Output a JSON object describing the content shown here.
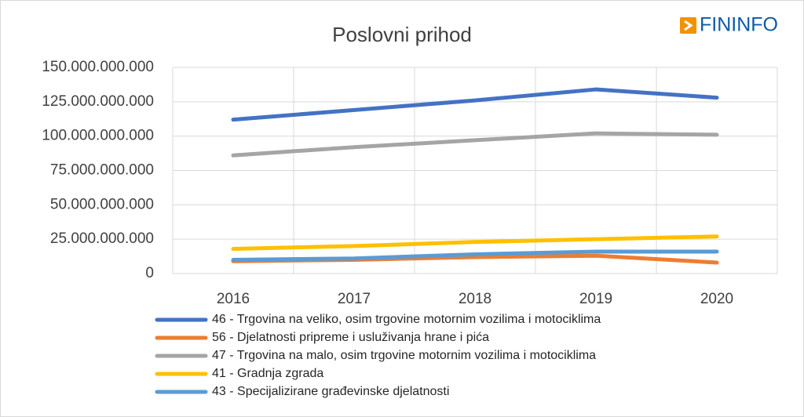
{
  "chart_data": {
    "type": "line",
    "title": "Poslovni prihod",
    "logo": "FININFO",
    "categories": [
      "2016",
      "2017",
      "2018",
      "2019",
      "2020"
    ],
    "series": [
      {
        "name": "46 - Trgovina na veliko, osim trgovine motornim vozilima i motociklima",
        "color": "#4472c4",
        "values": [
          112000000000,
          119000000000,
          126000000000,
          134000000000,
          128000000000
        ]
      },
      {
        "name": "56 - Djelatnosti pripreme i usluživanja hrane i pića",
        "color": "#ed7d31",
        "values": [
          9000000000,
          10000000000,
          12000000000,
          13000000000,
          8000000000
        ]
      },
      {
        "name": "47 - Trgovina na malo, osim trgovine motornim vozilima i motociklima",
        "color": "#a5a5a5",
        "values": [
          86000000000,
          92000000000,
          97000000000,
          102000000000,
          101000000000
        ]
      },
      {
        "name": "41 - Gradnja zgrada",
        "color": "#ffc000",
        "values": [
          18000000000,
          20000000000,
          23000000000,
          25000000000,
          27000000000
        ]
      },
      {
        "name": "43 - Specijalizirane građevinske djelatnosti",
        "color": "#5b9bd5",
        "values": [
          10000000000,
          11000000000,
          14000000000,
          16000000000,
          16000000000
        ]
      }
    ],
    "ylim": [
      0,
      150000000000
    ],
    "yticks": [
      0,
      {
        "value": 25000000000,
        "label": "25.000.000.000"
      },
      {
        "value": 50000000000,
        "label": "50.000.000.000"
      },
      {
        "value": 75000000000,
        "label": "75.000.000.000"
      },
      {
        "value": 100000000000,
        "label": "100.000.000.000"
      },
      {
        "value": 125000000000,
        "label": "125.000.000.000"
      },
      {
        "value": 150000000000,
        "label": "150.000.000.000"
      }
    ],
    "grid": true
  }
}
